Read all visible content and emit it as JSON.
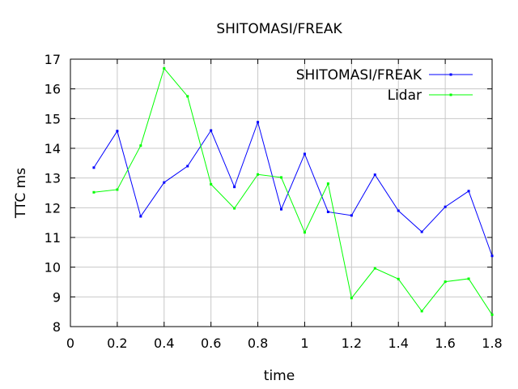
{
  "chart_data": {
    "type": "line",
    "title": "SHITOMASI/FREAK",
    "xlabel": "time",
    "ylabel": "TTC ms",
    "xlim": [
      0,
      1.8
    ],
    "ylim": [
      8,
      17
    ],
    "xticks": [
      "0",
      "0.2",
      "0.4",
      "0.6",
      "0.8",
      "1",
      "1.2",
      "1.4",
      "1.6",
      "1.8"
    ],
    "yticks": [
      "8",
      "9",
      "10",
      "11",
      "12",
      "13",
      "14",
      "15",
      "16",
      "17"
    ],
    "grid": true,
    "legend_position": "top-right",
    "x": [
      0.1,
      0.2,
      0.3,
      0.4,
      0.5,
      0.6,
      0.7,
      0.8,
      0.9,
      1.0,
      1.1,
      1.2,
      1.3,
      1.4,
      1.5,
      1.6,
      1.7,
      1.8
    ],
    "series": [
      {
        "name": "SHITOMASI/FREAK",
        "color": "#0000ff",
        "values": [
          13.35,
          14.58,
          11.71,
          12.85,
          13.4,
          14.6,
          12.7,
          14.88,
          11.95,
          13.81,
          11.86,
          11.74,
          13.11,
          11.9,
          11.19,
          12.03,
          12.56,
          10.38
        ]
      },
      {
        "name": "Lidar",
        "color": "#00ff00",
        "values": [
          12.52,
          12.61,
          14.09,
          16.69,
          15.75,
          12.79,
          11.98,
          13.12,
          13.02,
          11.17,
          12.81,
          8.96,
          9.96,
          9.6,
          8.52,
          9.51,
          9.61,
          8.4
        ]
      }
    ]
  }
}
